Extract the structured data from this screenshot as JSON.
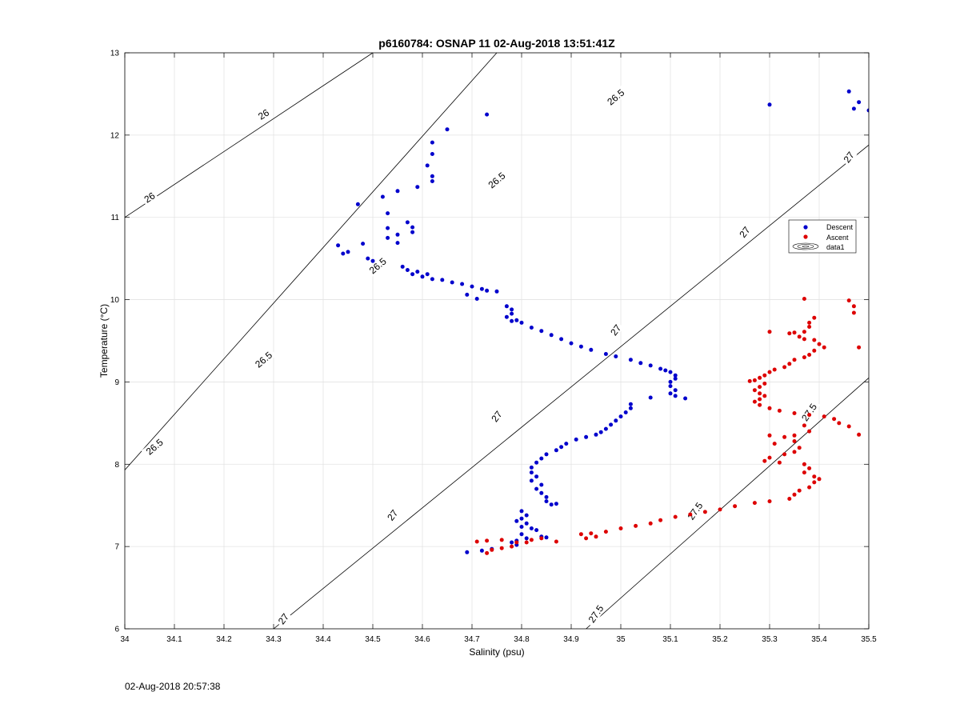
{
  "footer_timestamp": "02-Aug-2018 20:57:38",
  "chart_data": {
    "type": "scatter",
    "title": "p6160784: OSNAP 11 02-Aug-2018 13:51:41Z",
    "xlabel": "Salinity (psu)",
    "ylabel": "Temperature (°C)",
    "xlim": [
      34,
      35.5
    ],
    "ylim": [
      6,
      13
    ],
    "xticks": [
      "34",
      "34.1",
      "34.2",
      "34.3",
      "34.4",
      "34.5",
      "34.6",
      "34.7",
      "34.8",
      "34.9",
      "35",
      "35.1",
      "35.2",
      "35.3",
      "35.4",
      "35.5"
    ],
    "yticks": [
      "6",
      "7",
      "8",
      "9",
      "10",
      "11",
      "12",
      "13"
    ],
    "grid": true,
    "legend_placement": "right",
    "colors": {
      "descent": "#0000cc",
      "ascent": "#dd0000",
      "contour": "#000000",
      "grid": "#e3e3e3"
    },
    "legend": [
      {
        "label": "Descent",
        "marker": "dot",
        "color": "#0000cc"
      },
      {
        "label": "Ascent",
        "marker": "dot",
        "color": "#dd0000"
      },
      {
        "label": "data1",
        "marker": "contour-icon",
        "color": "#000000"
      }
    ],
    "contours": [
      {
        "label": "26",
        "points": [
          [
            34.0,
            11.0
          ],
          [
            34.5,
            13.0
          ]
        ]
      },
      {
        "label": "26.5",
        "points": [
          [
            34.0,
            7.93
          ],
          [
            34.75,
            13.0
          ]
        ]
      },
      {
        "label": "27",
        "points": [
          [
            34.3,
            6.0
          ],
          [
            35.5,
            11.88
          ]
        ]
      },
      {
        "label": "27.5",
        "points": [
          [
            34.93,
            6.0
          ],
          [
            35.5,
            9.05
          ]
        ]
      }
    ],
    "contour_labels": [
      {
        "text": "26",
        "x": 34.05,
        "y": 11.24,
        "angle": -33
      },
      {
        "text": "26",
        "x": 34.28,
        "y": 12.25,
        "angle": -33
      },
      {
        "text": "26.5",
        "x": 34.06,
        "y": 8.21,
        "angle": -40
      },
      {
        "text": "26.5",
        "x": 34.28,
        "y": 9.27,
        "angle": -40
      },
      {
        "text": "26.5",
        "x": 34.51,
        "y": 10.41,
        "angle": -40
      },
      {
        "text": "26.5",
        "x": 34.75,
        "y": 11.45,
        "angle": -40
      },
      {
        "text": "26.5",
        "x": 34.99,
        "y": 12.46,
        "angle": -40
      },
      {
        "text": "27",
        "x": 34.32,
        "y": 6.12,
        "angle": -53
      },
      {
        "text": "27",
        "x": 34.54,
        "y": 7.38,
        "angle": -53
      },
      {
        "text": "27",
        "x": 34.75,
        "y": 8.58,
        "angle": -53
      },
      {
        "text": "27",
        "x": 34.99,
        "y": 9.63,
        "angle": -53
      },
      {
        "text": "27",
        "x": 35.25,
        "y": 10.82,
        "angle": -53
      },
      {
        "text": "27",
        "x": 35.46,
        "y": 11.73,
        "angle": -53
      },
      {
        "text": "27.5",
        "x": 34.95,
        "y": 6.18,
        "angle": -55
      },
      {
        "text": "27.5",
        "x": 35.15,
        "y": 7.43,
        "angle": -55
      },
      {
        "text": "27.5",
        "x": 35.38,
        "y": 8.63,
        "angle": -55
      }
    ],
    "series": [
      {
        "name": "Descent",
        "color": "#0000cc",
        "points": [
          [
            34.65,
            12.07
          ],
          [
            34.73,
            12.25
          ],
          [
            34.62,
            11.91
          ],
          [
            34.62,
            11.77
          ],
          [
            34.61,
            11.63
          ],
          [
            34.62,
            11.5
          ],
          [
            34.62,
            11.44
          ],
          [
            34.59,
            11.37
          ],
          [
            34.55,
            11.32
          ],
          [
            34.52,
            11.25
          ],
          [
            34.47,
            11.16
          ],
          [
            34.53,
            11.05
          ],
          [
            34.53,
            10.87
          ],
          [
            34.57,
            10.94
          ],
          [
            34.58,
            10.88
          ],
          [
            34.58,
            10.82
          ],
          [
            34.55,
            10.79
          ],
          [
            34.53,
            10.75
          ],
          [
            34.55,
            10.69
          ],
          [
            34.48,
            10.68
          ],
          [
            34.43,
            10.66
          ],
          [
            34.45,
            10.58
          ],
          [
            34.44,
            10.56
          ],
          [
            34.49,
            10.5
          ],
          [
            34.5,
            10.47
          ],
          [
            35.3,
            12.37
          ],
          [
            35.46,
            12.53
          ],
          [
            35.47,
            12.32
          ],
          [
            35.48,
            12.4
          ],
          [
            35.5,
            12.3
          ],
          [
            34.56,
            10.4
          ],
          [
            34.57,
            10.36
          ],
          [
            34.58,
            10.31
          ],
          [
            34.59,
            10.34
          ],
          [
            34.6,
            10.28
          ],
          [
            34.61,
            10.31
          ],
          [
            34.62,
            10.25
          ],
          [
            34.64,
            10.24
          ],
          [
            34.66,
            10.21
          ],
          [
            34.68,
            10.19
          ],
          [
            34.7,
            10.16
          ],
          [
            34.72,
            10.13
          ],
          [
            34.73,
            10.11
          ],
          [
            34.75,
            10.1
          ],
          [
            34.69,
            10.06
          ],
          [
            34.71,
            10.01
          ],
          [
            34.77,
            9.92
          ],
          [
            34.78,
            9.88
          ],
          [
            34.78,
            9.83
          ],
          [
            34.77,
            9.79
          ],
          [
            34.78,
            9.74
          ],
          [
            34.79,
            9.75
          ],
          [
            34.8,
            9.72
          ],
          [
            34.82,
            9.66
          ],
          [
            34.84,
            9.62
          ],
          [
            34.86,
            9.57
          ],
          [
            34.88,
            9.52
          ],
          [
            34.9,
            9.47
          ],
          [
            34.92,
            9.43
          ],
          [
            34.94,
            9.39
          ],
          [
            34.97,
            9.34
          ],
          [
            34.99,
            9.31
          ],
          [
            35.02,
            9.27
          ],
          [
            35.04,
            9.23
          ],
          [
            35.06,
            9.2
          ],
          [
            35.08,
            9.16
          ],
          [
            35.09,
            9.14
          ],
          [
            35.1,
            9.12
          ],
          [
            35.11,
            9.08
          ],
          [
            35.11,
            9.04
          ],
          [
            35.1,
            9.0
          ],
          [
            35.1,
            8.95
          ],
          [
            35.11,
            8.9
          ],
          [
            35.1,
            8.86
          ],
          [
            35.11,
            8.83
          ],
          [
            35.13,
            8.8
          ],
          [
            35.06,
            8.81
          ],
          [
            35.02,
            8.73
          ],
          [
            35.02,
            8.68
          ],
          [
            35.01,
            8.63
          ],
          [
            35.0,
            8.58
          ],
          [
            34.99,
            8.53
          ],
          [
            34.98,
            8.48
          ],
          [
            34.97,
            8.43
          ],
          [
            34.96,
            8.39
          ],
          [
            34.95,
            8.36
          ],
          [
            34.93,
            8.33
          ],
          [
            34.91,
            8.3
          ],
          [
            34.89,
            8.25
          ],
          [
            34.88,
            8.21
          ],
          [
            34.87,
            8.17
          ],
          [
            34.85,
            8.12
          ],
          [
            34.84,
            8.07
          ],
          [
            34.83,
            8.02
          ],
          [
            34.82,
            7.96
          ],
          [
            34.82,
            7.9
          ],
          [
            34.83,
            7.85
          ],
          [
            34.82,
            7.8
          ],
          [
            34.84,
            7.75
          ],
          [
            34.83,
            7.7
          ],
          [
            34.84,
            7.65
          ],
          [
            34.85,
            7.6
          ],
          [
            34.85,
            7.55
          ],
          [
            34.86,
            7.51
          ],
          [
            34.87,
            7.52
          ],
          [
            34.8,
            7.43
          ],
          [
            34.81,
            7.38
          ],
          [
            34.8,
            7.34
          ],
          [
            34.79,
            7.31
          ],
          [
            34.81,
            7.28
          ],
          [
            34.8,
            7.24
          ],
          [
            34.82,
            7.22
          ],
          [
            34.83,
            7.2
          ],
          [
            34.8,
            7.15
          ],
          [
            34.81,
            7.1
          ],
          [
            34.79,
            7.07
          ],
          [
            34.79,
            7.02
          ],
          [
            34.78,
            7.05
          ],
          [
            34.74,
            6.97
          ],
          [
            34.72,
            6.95
          ],
          [
            34.69,
            6.93
          ],
          [
            34.84,
            7.12
          ],
          [
            34.85,
            7.11
          ]
        ]
      },
      {
        "name": "Ascent",
        "color": "#dd0000",
        "points": [
          [
            35.37,
            10.01
          ],
          [
            35.46,
            9.99
          ],
          [
            35.47,
            9.92
          ],
          [
            35.47,
            9.84
          ],
          [
            35.39,
            9.78
          ],
          [
            35.38,
            9.72
          ],
          [
            35.38,
            9.67
          ],
          [
            35.37,
            9.61
          ],
          [
            35.35,
            9.6
          ],
          [
            35.34,
            9.59
          ],
          [
            35.3,
            9.61
          ],
          [
            35.36,
            9.55
          ],
          [
            35.37,
            9.52
          ],
          [
            35.39,
            9.51
          ],
          [
            35.4,
            9.46
          ],
          [
            35.41,
            9.42
          ],
          [
            35.48,
            9.42
          ],
          [
            35.39,
            9.38
          ],
          [
            35.38,
            9.33
          ],
          [
            35.37,
            9.3
          ],
          [
            35.35,
            9.27
          ],
          [
            35.34,
            9.22
          ],
          [
            35.33,
            9.18
          ],
          [
            35.31,
            9.15
          ],
          [
            35.3,
            9.12
          ],
          [
            35.29,
            9.08
          ],
          [
            35.28,
            9.05
          ],
          [
            35.27,
            9.02
          ],
          [
            35.26,
            9.01
          ],
          [
            35.29,
            8.98
          ],
          [
            35.28,
            8.94
          ],
          [
            35.27,
            8.9
          ],
          [
            35.28,
            8.86
          ],
          [
            35.29,
            8.83
          ],
          [
            35.28,
            8.79
          ],
          [
            35.27,
            8.76
          ],
          [
            35.28,
            8.72
          ],
          [
            35.3,
            8.68
          ],
          [
            35.32,
            8.65
          ],
          [
            35.35,
            8.62
          ],
          [
            35.38,
            8.6
          ],
          [
            35.41,
            8.58
          ],
          [
            35.43,
            8.55
          ],
          [
            35.44,
            8.5
          ],
          [
            35.46,
            8.46
          ],
          [
            35.48,
            8.36
          ],
          [
            35.37,
            8.47
          ],
          [
            35.38,
            8.4
          ],
          [
            35.35,
            8.35
          ],
          [
            35.33,
            8.33
          ],
          [
            35.3,
            8.35
          ],
          [
            35.31,
            8.25
          ],
          [
            35.35,
            8.28
          ],
          [
            35.36,
            8.2
          ],
          [
            35.35,
            8.15
          ],
          [
            35.33,
            8.12
          ],
          [
            35.3,
            8.08
          ],
          [
            35.29,
            8.04
          ],
          [
            35.32,
            8.02
          ],
          [
            35.37,
            8.0
          ],
          [
            35.38,
            7.95
          ],
          [
            35.37,
            7.9
          ],
          [
            35.39,
            7.85
          ],
          [
            35.4,
            7.82
          ],
          [
            35.39,
            7.78
          ],
          [
            35.38,
            7.72
          ],
          [
            35.36,
            7.68
          ],
          [
            35.35,
            7.63
          ],
          [
            35.34,
            7.58
          ],
          [
            35.3,
            7.55
          ],
          [
            35.27,
            7.53
          ],
          [
            35.23,
            7.49
          ],
          [
            35.2,
            7.45
          ],
          [
            35.17,
            7.42
          ],
          [
            35.14,
            7.39
          ],
          [
            35.11,
            7.36
          ],
          [
            35.08,
            7.32
          ],
          [
            35.06,
            7.28
          ],
          [
            35.03,
            7.25
          ],
          [
            35.0,
            7.22
          ],
          [
            34.97,
            7.18
          ],
          [
            34.94,
            7.16
          ],
          [
            34.92,
            7.15
          ],
          [
            34.95,
            7.12
          ],
          [
            34.93,
            7.1
          ],
          [
            34.87,
            7.06
          ],
          [
            34.84,
            7.1
          ],
          [
            34.81,
            7.05
          ],
          [
            34.78,
            7.0
          ],
          [
            34.76,
            6.98
          ],
          [
            34.74,
            6.96
          ],
          [
            34.73,
            6.92
          ],
          [
            34.71,
            7.06
          ],
          [
            34.73,
            7.07
          ],
          [
            34.76,
            7.08
          ],
          [
            34.79,
            7.05
          ],
          [
            34.82,
            7.08
          ]
        ]
      }
    ]
  }
}
